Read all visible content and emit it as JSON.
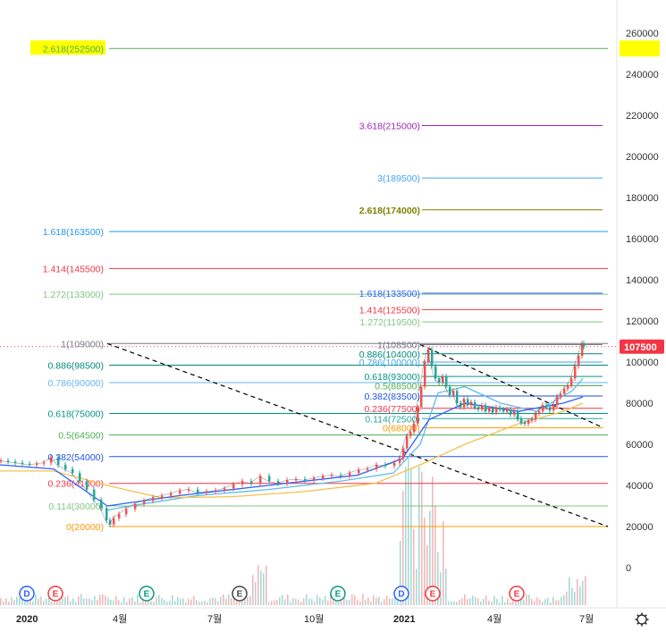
{
  "chart_data": {
    "type": "candlestick",
    "y_axis": {
      "min": -5000,
      "max": 270000,
      "ticks": [
        "260000",
        "240000",
        "220000",
        "200000",
        "180000",
        "160000",
        "140000",
        "120000",
        "100000",
        "80000",
        "60000",
        "40000",
        "20000",
        "0"
      ]
    },
    "x_axis": {
      "labels": [
        "2020",
        "4월",
        "7월",
        "10월",
        "2021",
        "4월",
        "7월"
      ],
      "bold": [
        "2020",
        "2021"
      ]
    },
    "last_price": {
      "value": 107500,
      "label": "107500",
      "color": "#f23645"
    },
    "highlight_level": {
      "value": 252500,
      "label": "2.618(252500)"
    },
    "fib_left": [
      {
        "label": "2.618(252500)",
        "value": 252500,
        "color": "#4caf50"
      },
      {
        "label": "1.618(163500)",
        "value": 163500,
        "color": "#2196f3"
      },
      {
        "label": "1.414(145500)",
        "value": 145500,
        "color": "#f23645"
      },
      {
        "label": "1.272(133000)",
        "value": 133000,
        "color": "#81c784"
      },
      {
        "label": "1(109000)",
        "value": 109000,
        "color": "#787b86"
      },
      {
        "label": "0.886(98500)",
        "value": 98500,
        "color": "#00897b"
      },
      {
        "label": "0.786(90000)",
        "value": 90000,
        "color": "#64b5f6"
      },
      {
        "label": "0.618(75000)",
        "value": 75000,
        "color": "#009688"
      },
      {
        "label": "0.5(64500)",
        "value": 64500,
        "color": "#4caf50"
      },
      {
        "label": "0.382(54000)",
        "value": 54000,
        "color": "#1e53e5"
      },
      {
        "label": "0.236(41000)",
        "value": 41000,
        "color": "#f23645"
      },
      {
        "label": "0.114(30000)",
        "value": 30000,
        "color": "#81c784"
      },
      {
        "label": "0(20000)",
        "value": 20000,
        "color": "#ff9800"
      }
    ],
    "fib_right": [
      {
        "label": "3.618(215000)",
        "value": 215000,
        "color": "#9c27b0"
      },
      {
        "label": "3(189500)",
        "value": 189500,
        "color": "#42a5f5"
      },
      {
        "label": "2.618(174000)",
        "value": 174000,
        "color": "#808000"
      },
      {
        "label": "1.618(133500)",
        "value": 133500,
        "color": "#2962ff"
      },
      {
        "label": "1.414(125500)",
        "value": 125500,
        "color": "#f23645"
      },
      {
        "label": "1.272(119500)",
        "value": 119500,
        "color": "#81c784"
      },
      {
        "label": "1(108500)",
        "value": 108500,
        "color": "#787b86"
      },
      {
        "label": "0.886(104000)",
        "value": 104000,
        "color": "#00897b"
      },
      {
        "label": "0.786(100000)",
        "value": 100000,
        "color": "#42a5f5"
      },
      {
        "label": "0.618(93000)",
        "value": 93000,
        "color": "#009688"
      },
      {
        "label": "0.5(88500)",
        "value": 88500,
        "color": "#4caf50"
      },
      {
        "label": "0.382(83500)",
        "value": 83500,
        "color": "#1e53e5"
      },
      {
        "label": "0.236(77500)",
        "value": 77500,
        "color": "#f23645"
      },
      {
        "label": "0.114(72500)",
        "value": 72500,
        "color": "#26a69a"
      },
      {
        "label": "0(68000)",
        "value": 68000,
        "color": "#ff9800"
      }
    ],
    "events": [
      {
        "type": "D",
        "color": "#2962ff"
      },
      {
        "type": "E",
        "color": "#f23645"
      },
      {
        "type": "E",
        "color": "#089981"
      },
      {
        "type": "E",
        "color": "#444444"
      },
      {
        "type": "E",
        "color": "#089981"
      },
      {
        "type": "D",
        "color": "#2962ff"
      },
      {
        "type": "E",
        "color": "#f23645"
      },
      {
        "type": "E",
        "color": "#f23645"
      }
    ],
    "price_series": [
      [
        0,
        52000
      ],
      [
        8,
        51500
      ],
      [
        16,
        51000
      ],
      [
        24,
        50500
      ],
      [
        32,
        50000
      ],
      [
        40,
        50500
      ],
      [
        48,
        51000
      ],
      [
        56,
        53500
      ],
      [
        64,
        50000
      ],
      [
        72,
        48000
      ],
      [
        80,
        46000
      ],
      [
        88,
        42000
      ],
      [
        96,
        38000
      ],
      [
        104,
        33000
      ],
      [
        112,
        29000
      ],
      [
        118,
        23000
      ],
      [
        122,
        21000
      ],
      [
        126,
        24000
      ],
      [
        132,
        26000
      ],
      [
        140,
        28500
      ],
      [
        150,
        31000
      ],
      [
        160,
        32500
      ],
      [
        170,
        34000
      ],
      [
        180,
        35000
      ],
      [
        190,
        36000
      ],
      [
        200,
        37500
      ],
      [
        210,
        38000
      ],
      [
        220,
        36500
      ],
      [
        230,
        37000
      ],
      [
        240,
        37500
      ],
      [
        250,
        38500
      ],
      [
        260,
        40500
      ],
      [
        270,
        42000
      ],
      [
        280,
        41000
      ],
      [
        290,
        44500
      ],
      [
        300,
        42000
      ],
      [
        310,
        41000
      ],
      [
        320,
        42500
      ],
      [
        330,
        43000
      ],
      [
        340,
        42500
      ],
      [
        350,
        43500
      ],
      [
        360,
        44500
      ],
      [
        370,
        45000
      ],
      [
        380,
        44500
      ],
      [
        390,
        46000
      ],
      [
        400,
        47500
      ],
      [
        410,
        48000
      ],
      [
        420,
        50000
      ],
      [
        430,
        49500
      ],
      [
        440,
        51000
      ],
      [
        446,
        53000
      ],
      [
        450,
        58000
      ],
      [
        454,
        64000
      ],
      [
        458,
        66000
      ],
      [
        462,
        70000
      ],
      [
        466,
        78000
      ],
      [
        470,
        88000
      ],
      [
        474,
        100000
      ],
      [
        478,
        106000
      ],
      [
        482,
        98000
      ],
      [
        486,
        92000
      ],
      [
        490,
        90000
      ],
      [
        494,
        93000
      ],
      [
        498,
        88000
      ],
      [
        502,
        84000
      ],
      [
        506,
        86000
      ],
      [
        510,
        80000
      ],
      [
        514,
        78000
      ],
      [
        518,
        82000
      ],
      [
        522,
        79000
      ],
      [
        526,
        80500
      ],
      [
        530,
        78000
      ],
      [
        534,
        77000
      ],
      [
        538,
        79000
      ],
      [
        542,
        76000
      ],
      [
        546,
        77500
      ],
      [
        550,
        75500
      ],
      [
        554,
        78000
      ],
      [
        558,
        77000
      ],
      [
        562,
        76000
      ],
      [
        566,
        77000
      ],
      [
        570,
        74500
      ],
      [
        574,
        76000
      ],
      [
        578,
        72500
      ],
      [
        582,
        70500
      ],
      [
        586,
        70000
      ],
      [
        590,
        71500
      ],
      [
        594,
        72000
      ],
      [
        598,
        75000
      ],
      [
        602,
        76000
      ],
      [
        606,
        79000
      ],
      [
        610,
        78000
      ],
      [
        614,
        76500
      ],
      [
        618,
        79000
      ],
      [
        622,
        83000
      ],
      [
        626,
        84500
      ],
      [
        630,
        87000
      ],
      [
        634,
        88500
      ],
      [
        638,
        92000
      ],
      [
        642,
        98000
      ],
      [
        646,
        103000
      ],
      [
        650,
        109000
      ],
      [
        652,
        107500
      ]
    ],
    "ma_series": [
      {
        "color": "#5fbbea",
        "points": [
          [
            120,
            28000
          ],
          [
            160,
            31000
          ],
          [
            220,
            35000
          ],
          [
            300,
            38000
          ],
          [
            380,
            42000
          ],
          [
            440,
            46000
          ],
          [
            470,
            60000
          ],
          [
            490,
            85000
          ],
          [
            520,
            88000
          ],
          [
            560,
            80000
          ],
          [
            600,
            76000
          ],
          [
            640,
            86000
          ],
          [
            652,
            92000
          ]
        ]
      },
      {
        "color": "#f4c150",
        "points": [
          [
            0,
            47000
          ],
          [
            60,
            47000
          ],
          [
            120,
            40000
          ],
          [
            180,
            34000
          ],
          [
            260,
            34500
          ],
          [
            340,
            37000
          ],
          [
            420,
            41000
          ],
          [
            470,
            50000
          ],
          [
            520,
            60000
          ],
          [
            580,
            70000
          ],
          [
            630,
            76000
          ],
          [
            652,
            80000
          ]
        ]
      },
      {
        "color": "#2962ff",
        "points": [
          [
            0,
            50000
          ],
          [
            60,
            48000
          ],
          [
            120,
            30000
          ],
          [
            200,
            35000
          ],
          [
            300,
            40000
          ],
          [
            400,
            45000
          ],
          [
            450,
            53000
          ],
          [
            480,
            72000
          ],
          [
            520,
            80000
          ],
          [
            580,
            76000
          ],
          [
            630,
            80000
          ],
          [
            652,
            83000
          ]
        ]
      }
    ],
    "trendlines": [
      {
        "from": [
          120,
          109000
        ],
        "to": [
          680,
          20000
        ],
        "style": "dashed"
      },
      {
        "from": [
          470,
          108500
        ],
        "to": [
          675,
          68000
        ],
        "style": "dashed"
      }
    ]
  }
}
